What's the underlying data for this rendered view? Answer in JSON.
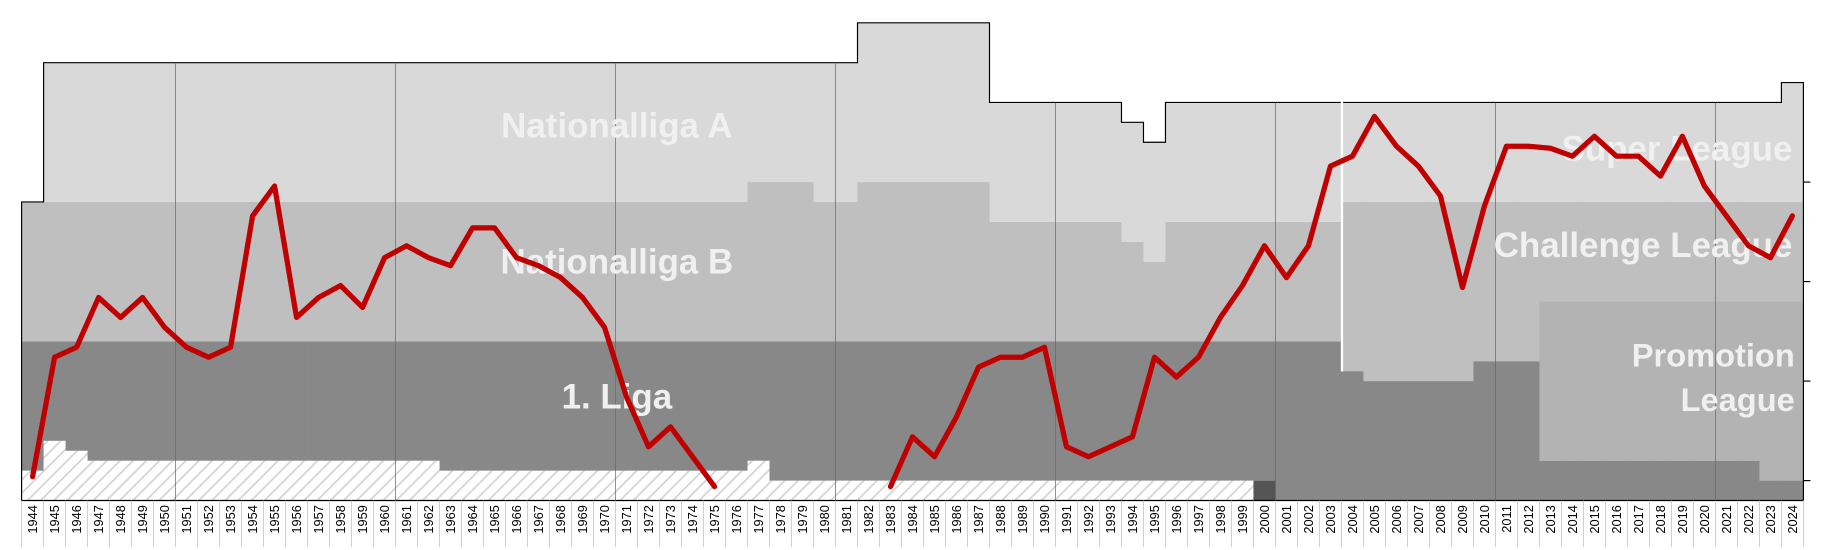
{
  "chart_data": {
    "type": "line",
    "categories": [
      "1944",
      "1945",
      "1946",
      "1947",
      "1948",
      "1949",
      "1950",
      "1951",
      "1952",
      "1953",
      "1954",
      "1955",
      "1956",
      "1957",
      "1958",
      "1959",
      "1960",
      "1961",
      "1962",
      "1963",
      "1964",
      "1965",
      "1966",
      "1967",
      "1968",
      "1969",
      "1970",
      "1971",
      "1972",
      "1973",
      "1974",
      "1975",
      "1976",
      "1977",
      "1978",
      "1979",
      "1980",
      "1981",
      "1982",
      "1983",
      "1984",
      "1985",
      "1986",
      "1987",
      "1988",
      "1989",
      "1990",
      "1991",
      "1992",
      "1993",
      "1994",
      "1995",
      "1996",
      "1997",
      "1998",
      "1999",
      "2000",
      "2001",
      "2002",
      "2003",
      "2004",
      "2005",
      "2006",
      "2007",
      "2008",
      "2009",
      "2010",
      "2011",
      "2012",
      "2013",
      "2014",
      "2015",
      "2016",
      "2017",
      "2018",
      "2019",
      "2020",
      "2021",
      "2022",
      "2023",
      "2024"
    ],
    "series": [
      {
        "color": "#c00000",
        "values": [
          0.2,
          6.2,
          6.7,
          9.2,
          8.2,
          9.2,
          7.7,
          6.7,
          6.2,
          6.7,
          13.3,
          14.8,
          8.2,
          9.2,
          9.8,
          8.7,
          11.2,
          11.8,
          11.2,
          10.8,
          12.7,
          12.7,
          11.2,
          10.8,
          10.2,
          9.2,
          7.7,
          4.2,
          1.7,
          2.7,
          1.2,
          -0.3,
          null,
          null,
          null,
          null,
          null,
          null,
          null,
          -0.3,
          2.2,
          1.2,
          3.2,
          5.7,
          6.2,
          6.2,
          6.7,
          1.7,
          1.2,
          1.7,
          2.2,
          6.2,
          5.2,
          6.2,
          8.2,
          9.8,
          11.8,
          10.2,
          11.8,
          15.8,
          16.3,
          18.3,
          16.8,
          15.8,
          14.3,
          9.7,
          13.8,
          16.8,
          16.8,
          16.7,
          16.3,
          17.3,
          16.3,
          16.3,
          15.3,
          17.3,
          14.8,
          13.3,
          11.8,
          11.2,
          13.3
        ]
      }
    ],
    "bands": [
      {
        "color": "#ffffff",
        "hatch": true,
        "values": [
          1.5,
          3,
          2.5,
          2,
          2,
          2,
          2,
          2,
          2,
          2,
          2,
          2,
          2,
          2,
          2,
          2,
          2,
          2,
          2,
          1.5,
          1.5,
          1.5,
          1.5,
          1.5,
          1.5,
          1.5,
          1.5,
          1.5,
          1.5,
          1.5,
          1.5,
          1.5,
          1.5,
          2,
          1,
          1,
          1,
          1,
          1,
          1,
          1,
          1,
          1,
          1,
          1,
          1,
          1,
          1,
          1,
          1,
          1,
          1,
          1,
          1,
          1,
          1,
          0,
          0,
          0,
          0,
          0,
          0,
          0,
          0,
          0,
          0,
          0,
          0,
          0,
          0,
          0,
          0,
          0,
          0,
          0,
          0,
          0,
          0,
          0,
          0,
          0
        ]
      },
      {
        "color": "#555555",
        "values": [
          0,
          0,
          0,
          0,
          0,
          0,
          0,
          0,
          0,
          0,
          0,
          0,
          0,
          0,
          0,
          0,
          0,
          0,
          0,
          0,
          0,
          0,
          0,
          0,
          0,
          0,
          0,
          0,
          0,
          0,
          0,
          0,
          0,
          0,
          0,
          0,
          0,
          0,
          0,
          0,
          0,
          0,
          0,
          0,
          0,
          0,
          0,
          0,
          0,
          0,
          0,
          0,
          0,
          0,
          0,
          0,
          1,
          0,
          0,
          0,
          0,
          0,
          0,
          0,
          0,
          0,
          0,
          0,
          0,
          0,
          0,
          0,
          0,
          0,
          0,
          0,
          0,
          0,
          0,
          0,
          0
        ]
      },
      {
        "color": "#888888",
        "values": [
          6.5,
          5,
          5.5,
          6,
          6,
          6,
          6,
          6,
          6,
          6,
          6,
          6,
          6,
          6,
          6,
          6,
          6,
          6,
          6,
          6.5,
          6.5,
          6.5,
          6.5,
          6.5,
          6.5,
          6.5,
          6.5,
          6.5,
          6.5,
          6.5,
          6.5,
          6.5,
          6.5,
          6,
          7,
          7,
          7,
          7,
          7,
          7,
          7,
          7,
          7,
          7,
          7,
          7,
          7,
          7,
          7,
          7,
          7,
          7,
          7,
          7,
          7,
          7,
          7,
          8,
          8,
          8,
          6.5,
          6,
          6,
          6,
          6,
          6,
          7,
          7,
          7,
          2,
          2,
          2,
          2,
          2,
          2,
          2,
          2,
          2,
          2,
          1,
          1
        ]
      },
      {
        "color": "#b3b3b3",
        "values": [
          0,
          0,
          0,
          0,
          0,
          0,
          0,
          0,
          0,
          0,
          0,
          0,
          0,
          0,
          0,
          0,
          0,
          0,
          0,
          0,
          0,
          0,
          0,
          0,
          0,
          0,
          0,
          0,
          0,
          0,
          0,
          0,
          0,
          0,
          0,
          0,
          0,
          0,
          0,
          0,
          0,
          0,
          0,
          0,
          0,
          0,
          0,
          0,
          0,
          0,
          0,
          0,
          0,
          0,
          0,
          0,
          0,
          0,
          0,
          0,
          0,
          0,
          0,
          0,
          0,
          0,
          0,
          0,
          0,
          8,
          8,
          8,
          8,
          8,
          8,
          8,
          8,
          8,
          8,
          9,
          9
        ]
      },
      {
        "color": "#bfbfbf",
        "values": [
          7,
          7,
          7,
          7,
          7,
          7,
          7,
          7,
          7,
          7,
          7,
          7,
          7,
          7,
          7,
          7,
          7,
          7,
          7,
          7,
          7,
          7,
          7,
          7,
          7,
          7,
          7,
          7,
          7,
          7,
          7,
          7,
          7,
          8,
          8,
          8,
          7,
          7,
          8,
          8,
          8,
          8,
          8,
          8,
          6,
          6,
          6,
          6,
          6,
          6,
          5,
          4,
          6,
          6,
          6,
          6,
          6,
          6,
          6,
          6,
          8.5,
          9,
          9,
          9,
          9,
          9,
          8,
          8,
          8,
          5,
          5,
          5,
          5,
          5,
          5,
          5,
          5,
          5,
          5,
          5,
          5
        ]
      },
      {
        "color": "#d9d9d9",
        "values": [
          0,
          7,
          7,
          7,
          7,
          7,
          7,
          7,
          7,
          7,
          7,
          7,
          7,
          7,
          7,
          7,
          7,
          7,
          7,
          7,
          7,
          7,
          7,
          7,
          7,
          7,
          7,
          7,
          7,
          7,
          7,
          7,
          7,
          6,
          6,
          6,
          7,
          7,
          8,
          8,
          8,
          8,
          8,
          8,
          6,
          6,
          6,
          6,
          6,
          6,
          6,
          6,
          6,
          6,
          6,
          6,
          6,
          6,
          6,
          6,
          5,
          5,
          5,
          5,
          5,
          5,
          5,
          5,
          5,
          5,
          5,
          5,
          5,
          5,
          5,
          5,
          5,
          5,
          5,
          5,
          6
        ]
      }
    ],
    "annotations": [
      "Nationalliga A",
      "Nationalliga B",
      "1. Liga",
      "Super League",
      "Challenge League",
      "Promotion League"
    ],
    "ylim": [
      -1,
      23
    ],
    "yticks": [
      0,
      5,
      10,
      15
    ]
  }
}
